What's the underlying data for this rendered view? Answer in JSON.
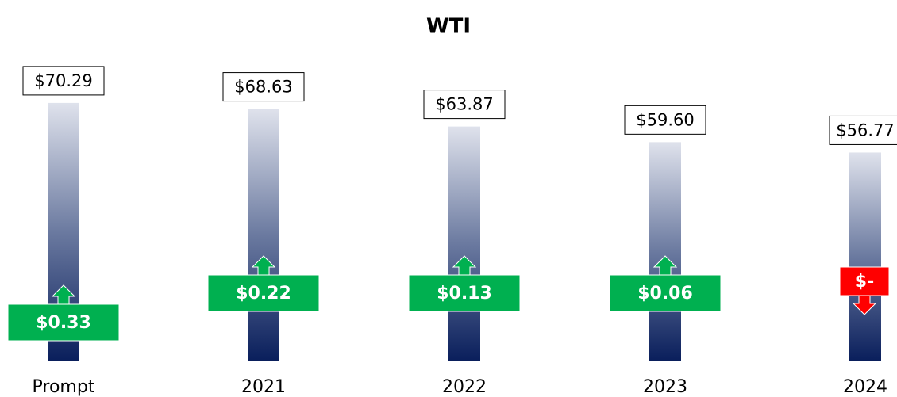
{
  "chart_data": {
    "type": "bar",
    "title": "WTI",
    "categories": [
      "Prompt",
      "2021",
      "2022",
      "2023",
      "2024"
    ],
    "values": [
      70.29,
      68.63,
      63.87,
      59.6,
      56.77
    ],
    "value_labels": [
      "$70.29",
      "$68.63",
      "$63.87",
      "$59.60",
      "$56.77"
    ],
    "changes": [
      0.33,
      0.22,
      0.13,
      0.06,
      0
    ],
    "change_labels": [
      "$0.33",
      "$0.22",
      "$0.13",
      "$0.06",
      "$-"
    ],
    "change_directions": [
      "up",
      "up",
      "up",
      "up",
      "down"
    ],
    "change_colors": [
      "#00b050",
      "#00b050",
      "#00b050",
      "#00b050",
      "#ff0000"
    ],
    "ylim": [
      0,
      80
    ]
  }
}
